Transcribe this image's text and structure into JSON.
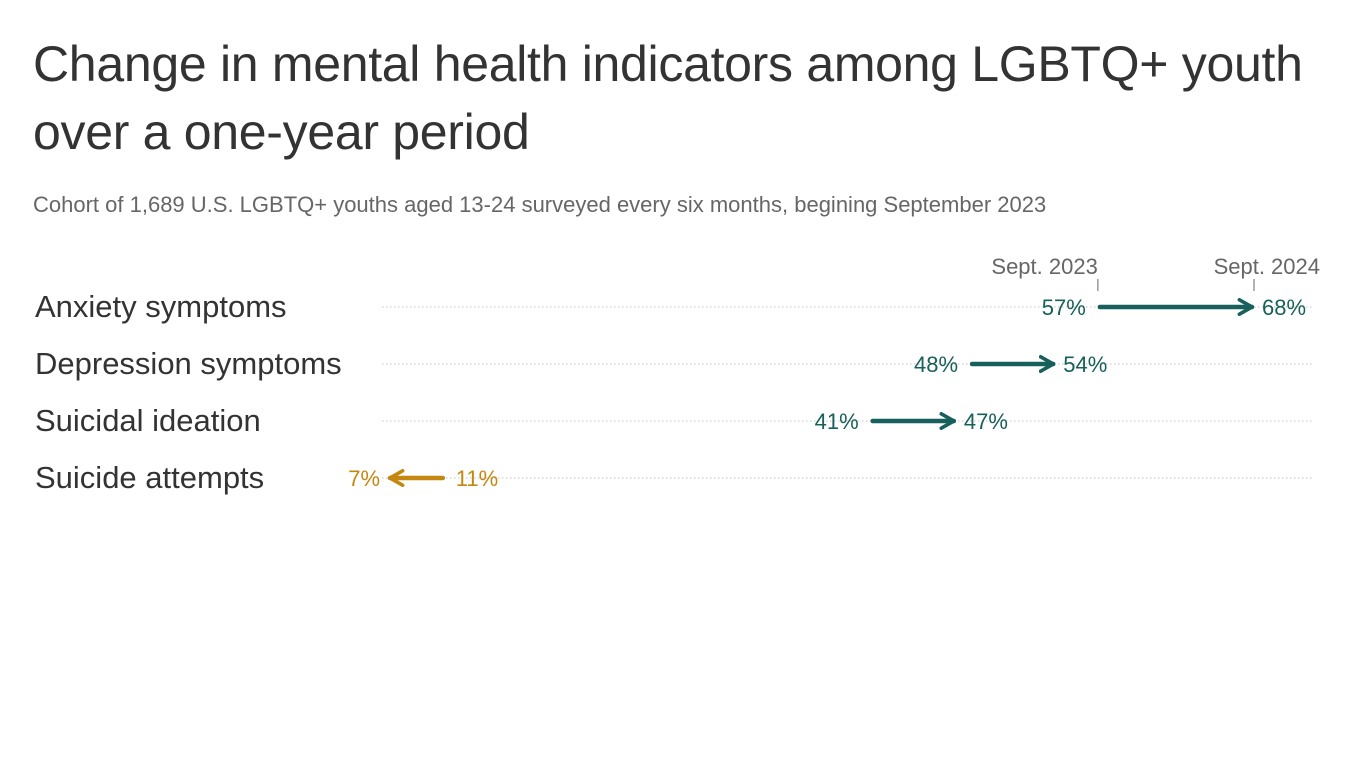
{
  "title": "Change in mental health indicators among LGBTQ+ youth over a one-year period",
  "subtitle": "Cohort of 1,689 U.S. LGBTQ+ youths aged 13-24 surveyed every six months, begining September 2023",
  "colors": {
    "increase": "#17605b",
    "decrease": "#c4870f",
    "gridline": "#cfcfcf",
    "tick": "#999999"
  },
  "chart_data": {
    "type": "arrow-dumbbell",
    "start_label": "Sept. 2023",
    "end_label": "Sept. 2024",
    "xlim": [
      7,
      68
    ],
    "categories": [
      "Anxiety symptoms",
      "Depression symptoms",
      "Suicidal ideation",
      "Suicide attempts"
    ],
    "series": [
      {
        "name": "Sept. 2023",
        "values": [
          57,
          48,
          41,
          11
        ]
      },
      {
        "name": "Sept. 2024",
        "values": [
          68,
          54,
          47,
          7
        ]
      }
    ],
    "value_labels": {
      "start": [
        "57%",
        "48%",
        "41%",
        "11%"
      ],
      "end": [
        "68%",
        "54%",
        "47%",
        "7%"
      ]
    }
  }
}
